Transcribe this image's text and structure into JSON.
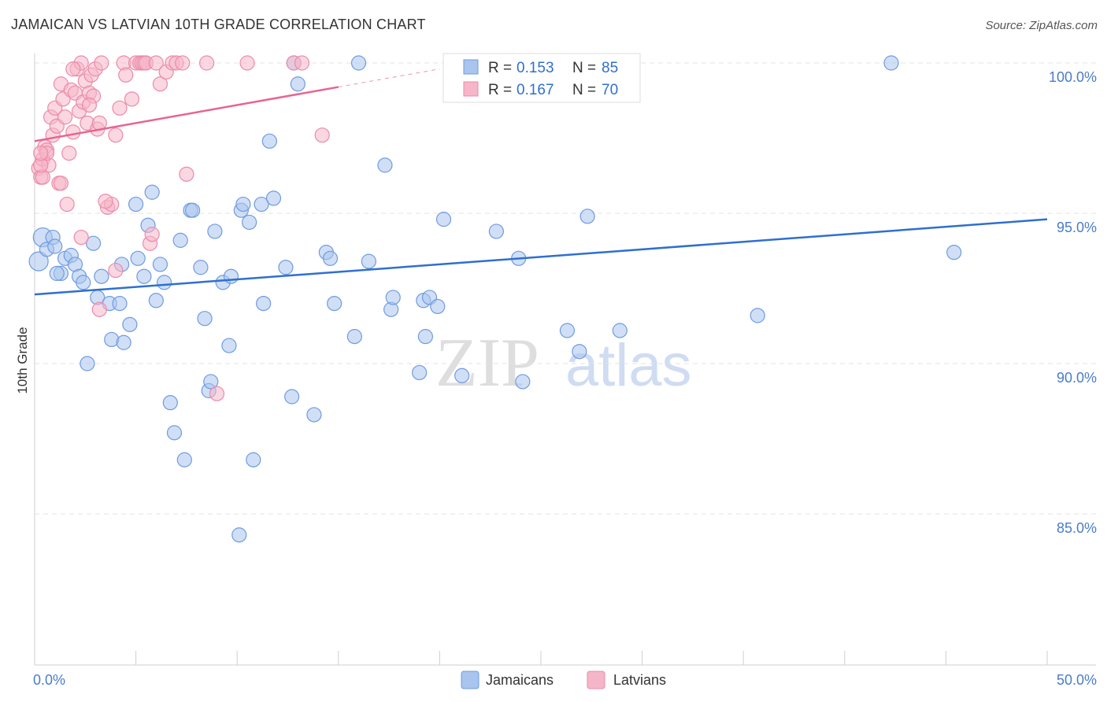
{
  "header": {
    "title": "JAMAICAN VS LATVIAN 10TH GRADE CORRELATION CHART",
    "source": "Source: ZipAtlas.com"
  },
  "watermark": {
    "part1": "ZIP",
    "part2": "atlas"
  },
  "legend": {
    "r_label": "R =",
    "n_label": "N =",
    "rows": [
      {
        "series": "Jamaicans",
        "r": "0.153",
        "n": "85"
      },
      {
        "series": "Latvians",
        "r": "0.167",
        "n": "70"
      }
    ]
  },
  "colors": {
    "jamaicans_fill": "#a9c4ee",
    "jamaicans_stroke": "#6f9be0",
    "jamaicans_line": "#2f6fd0",
    "latvians_fill": "#f6b6c9",
    "latvians_stroke": "#ec8aa9",
    "latvians_line": "#e8648f",
    "grid": "#e3e3e3",
    "axis_text": "#4a7cc9"
  },
  "chart_data": {
    "type": "scatter",
    "title": "JAMAICAN VS LATVIAN 10TH GRADE CORRELATION CHART",
    "xlabel": "",
    "ylabel": "10th Grade",
    "xlim": [
      0,
      50
    ],
    "ylim": [
      80.7,
      100.7
    ],
    "x_tick_labels": [
      {
        "value": 0,
        "label": "0.0%"
      },
      {
        "value": 50,
        "label": "50.0%"
      }
    ],
    "y_tick_labels": [
      {
        "value": 85,
        "label": "85.0%"
      },
      {
        "value": 90,
        "label": "90.0%"
      },
      {
        "value": 95,
        "label": "95.0%"
      },
      {
        "value": 100,
        "label": "100.0%"
      }
    ],
    "grid": true,
    "legend_position": "top-center",
    "series": [
      {
        "name": "Jamaicans",
        "r": 0.153,
        "n": 85,
        "trend": {
          "x": [
            0,
            50
          ],
          "y": [
            92.3,
            94.8
          ]
        },
        "points": [
          [
            0.2,
            93.4
          ],
          [
            0.4,
            94.2
          ],
          [
            0.6,
            93.8
          ],
          [
            0.9,
            94.2
          ],
          [
            1.0,
            93.9
          ],
          [
            1.3,
            93.0
          ],
          [
            1.5,
            93.5
          ],
          [
            1.8,
            93.6
          ],
          [
            2.0,
            93.3
          ],
          [
            2.2,
            92.9
          ],
          [
            2.4,
            92.7
          ],
          [
            2.6,
            90.0
          ],
          [
            2.9,
            94.0
          ],
          [
            3.1,
            92.2
          ],
          [
            3.3,
            92.9
          ],
          [
            3.7,
            92.0
          ],
          [
            3.8,
            90.8
          ],
          [
            4.2,
            92.0
          ],
          [
            4.3,
            93.3
          ],
          [
            4.4,
            90.7
          ],
          [
            4.7,
            91.3
          ],
          [
            5.0,
            95.3
          ],
          [
            5.1,
            93.5
          ],
          [
            5.4,
            92.9
          ],
          [
            5.6,
            94.6
          ],
          [
            5.8,
            95.7
          ],
          [
            6.0,
            92.1
          ],
          [
            6.2,
            93.3
          ],
          [
            6.4,
            92.7
          ],
          [
            6.7,
            88.7
          ],
          [
            6.9,
            87.7
          ],
          [
            7.2,
            94.1
          ],
          [
            7.4,
            86.8
          ],
          [
            7.7,
            95.1
          ],
          [
            7.8,
            95.1
          ],
          [
            8.2,
            93.2
          ],
          [
            8.4,
            91.5
          ],
          [
            8.6,
            89.1
          ],
          [
            8.7,
            89.4
          ],
          [
            8.9,
            94.4
          ],
          [
            9.3,
            92.7
          ],
          [
            9.6,
            90.6
          ],
          [
            9.7,
            92.9
          ],
          [
            10.2,
            95.1
          ],
          [
            10.3,
            95.3
          ],
          [
            10.6,
            94.7
          ],
          [
            10.8,
            86.8
          ],
          [
            11.2,
            95.3
          ],
          [
            11.3,
            92.0
          ],
          [
            11.6,
            97.4
          ],
          [
            11.8,
            95.5
          ],
          [
            12.4,
            93.2
          ],
          [
            12.7,
            88.9
          ],
          [
            12.8,
            100.0
          ],
          [
            13.0,
            99.3
          ],
          [
            13.8,
            88.3
          ],
          [
            14.4,
            93.7
          ],
          [
            14.6,
            93.5
          ],
          [
            14.8,
            92.0
          ],
          [
            15.8,
            90.9
          ],
          [
            16.0,
            100.0
          ],
          [
            16.5,
            93.4
          ],
          [
            17.3,
            96.6
          ],
          [
            17.6,
            91.8
          ],
          [
            17.7,
            92.2
          ],
          [
            19.0,
            89.7
          ],
          [
            19.2,
            92.1
          ],
          [
            19.3,
            90.9
          ],
          [
            19.5,
            92.2
          ],
          [
            19.9,
            91.9
          ],
          [
            20.2,
            94.8
          ],
          [
            21.1,
            89.6
          ],
          [
            22.8,
            94.4
          ],
          [
            23.9,
            93.5
          ],
          [
            24.1,
            89.4
          ],
          [
            26.3,
            91.1
          ],
          [
            26.9,
            90.4
          ],
          [
            27.3,
            94.9
          ],
          [
            10.1,
            84.3
          ],
          [
            28.9,
            91.1
          ],
          [
            35.7,
            91.6
          ],
          [
            42.3,
            100.0
          ],
          [
            45.4,
            93.7
          ],
          [
            1.1,
            93.0
          ],
          [
            27.8,
            100.0
          ]
        ]
      },
      {
        "name": "Latvians",
        "r": 0.167,
        "n": 70,
        "trend": {
          "x": [
            0,
            15
          ],
          "y": [
            97.4,
            99.2
          ]
        },
        "trend_dashed_extension": {
          "x": [
            15,
            20
          ],
          "y": [
            99.2,
            99.8
          ]
        },
        "points": [
          [
            0.2,
            96.5
          ],
          [
            0.3,
            96.2
          ],
          [
            0.4,
            96.8
          ],
          [
            0.5,
            97.2
          ],
          [
            0.6,
            97.1
          ],
          [
            0.7,
            96.6
          ],
          [
            0.8,
            98.2
          ],
          [
            0.9,
            97.6
          ],
          [
            1.0,
            98.5
          ],
          [
            1.1,
            97.9
          ],
          [
            1.2,
            96.0
          ],
          [
            1.3,
            99.3
          ],
          [
            1.4,
            98.8
          ],
          [
            1.5,
            98.2
          ],
          [
            1.6,
            95.3
          ],
          [
            1.7,
            97.0
          ],
          [
            1.8,
            99.1
          ],
          [
            1.9,
            97.7
          ],
          [
            2.0,
            99.0
          ],
          [
            2.1,
            99.8
          ],
          [
            2.2,
            98.4
          ],
          [
            2.3,
            100.0
          ],
          [
            2.4,
            98.7
          ],
          [
            2.5,
            99.4
          ],
          [
            2.6,
            98.0
          ],
          [
            2.7,
            99.0
          ],
          [
            2.8,
            99.6
          ],
          [
            2.9,
            98.9
          ],
          [
            3.0,
            99.8
          ],
          [
            3.1,
            97.8
          ],
          [
            3.2,
            98.0
          ],
          [
            3.3,
            100.0
          ],
          [
            3.6,
            95.2
          ],
          [
            3.8,
            95.3
          ],
          [
            4.0,
            93.1
          ],
          [
            4.2,
            98.5
          ],
          [
            4.4,
            100.0
          ],
          [
            4.5,
            99.6
          ],
          [
            4.8,
            98.8
          ],
          [
            5.0,
            100.0
          ],
          [
            5.2,
            100.0
          ],
          [
            5.3,
            100.0
          ],
          [
            5.4,
            100.0
          ],
          [
            5.5,
            100.0
          ],
          [
            5.7,
            94.0
          ],
          [
            5.8,
            94.3
          ],
          [
            6.0,
            100.0
          ],
          [
            6.2,
            99.3
          ],
          [
            6.5,
            99.7
          ],
          [
            6.8,
            100.0
          ],
          [
            7.0,
            100.0
          ],
          [
            7.3,
            100.0
          ],
          [
            7.5,
            96.3
          ],
          [
            8.5,
            100.0
          ],
          [
            9.0,
            89.0
          ],
          [
            10.5,
            100.0
          ],
          [
            12.8,
            100.0
          ],
          [
            13.2,
            100.0
          ],
          [
            14.2,
            97.6
          ],
          [
            3.2,
            91.8
          ],
          [
            2.3,
            94.2
          ],
          [
            1.3,
            96.0
          ],
          [
            0.4,
            96.2
          ],
          [
            0.6,
            97.0
          ],
          [
            1.9,
            99.8
          ],
          [
            2.7,
            98.6
          ],
          [
            3.5,
            95.4
          ],
          [
            4.0,
            97.6
          ],
          [
            0.3,
            96.6
          ],
          [
            0.3,
            97.0
          ]
        ]
      }
    ]
  },
  "bottom_legend": [
    {
      "label": "Jamaicans"
    },
    {
      "label": "Latvians"
    }
  ]
}
